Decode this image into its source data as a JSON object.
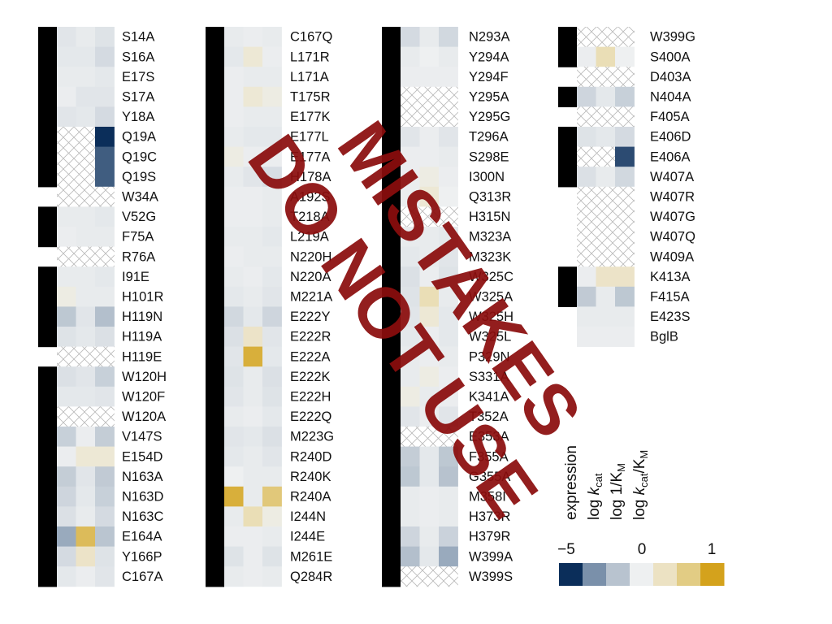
{
  "chart_data": {
    "type": "heatmap",
    "columns": [
      "expression",
      "log kcat",
      "log 1/KM",
      "log kcat/KM"
    ],
    "legend": {
      "min_label": "−5",
      "mid_label": "0",
      "max_label": "1",
      "colors": [
        "#0b2e5a",
        "#7a90aa",
        "#b8c3cf",
        "#eef0f1",
        "#ece2c3",
        "#e2cc84",
        "#d4a21c"
      ]
    },
    "watermark": [
      "MISTAKES",
      "DO NOT USE"
    ],
    "note": "expressed: 1 = black bar, 0 = none; values: log-scale z (null = not measured / hatched)",
    "mutants": [
      {
        "name": "S14A",
        "expressed": 1,
        "kcat": -0.4,
        "km": -0.2,
        "eff": -0.5
      },
      {
        "name": "S16A",
        "expressed": 1,
        "kcat": -0.3,
        "km": -0.3,
        "eff": -0.8
      },
      {
        "name": "E17S",
        "expressed": 1,
        "kcat": -0.2,
        "km": -0.2,
        "eff": -0.3
      },
      {
        "name": "S17A",
        "expressed": 1,
        "kcat": -0.1,
        "km": -0.4,
        "eff": -0.4
      },
      {
        "name": "Y18A",
        "expressed": 1,
        "kcat": -0.4,
        "km": -0.3,
        "eff": -0.8
      },
      {
        "name": "Q19A",
        "expressed": 1,
        "kcat": null,
        "km": null,
        "eff": -5.0
      },
      {
        "name": "Q19C",
        "expressed": 1,
        "kcat": null,
        "km": null,
        "eff": -4.2
      },
      {
        "name": "Q19S",
        "expressed": 1,
        "kcat": null,
        "km": null,
        "eff": -4.2
      },
      {
        "name": "W34A",
        "expressed": 0,
        "kcat": null,
        "km": null,
        "eff": null
      },
      {
        "name": "V52G",
        "expressed": 1,
        "kcat": -0.2,
        "km": -0.2,
        "eff": -0.3
      },
      {
        "name": "F75A",
        "expressed": 1,
        "kcat": -0.1,
        "km": -0.2,
        "eff": -0.2
      },
      {
        "name": "R76A",
        "expressed": 0,
        "kcat": null,
        "km": null,
        "eff": null
      },
      {
        "name": "I91E",
        "expressed": 1,
        "kcat": -0.2,
        "km": -0.2,
        "eff": -0.3
      },
      {
        "name": "H101R",
        "expressed": 1,
        "kcat": 0.1,
        "km": -0.2,
        "eff": -0.2
      },
      {
        "name": "H119N",
        "expressed": 1,
        "kcat": -1.5,
        "km": -0.4,
        "eff": -1.8
      },
      {
        "name": "H119A",
        "expressed": 1,
        "kcat": -0.5,
        "km": -0.3,
        "eff": -0.6
      },
      {
        "name": "H119E",
        "expressed": 0,
        "kcat": null,
        "km": null,
        "eff": null
      },
      {
        "name": "W120H",
        "expressed": 1,
        "kcat": -0.6,
        "km": -0.4,
        "eff": -1.2
      },
      {
        "name": "W120F",
        "expressed": 1,
        "kcat": -0.3,
        "km": -0.3,
        "eff": -0.4
      },
      {
        "name": "W120A",
        "expressed": 1,
        "kcat": null,
        "km": null,
        "eff": null
      },
      {
        "name": "V147S",
        "expressed": 1,
        "kcat": -1.2,
        "km": -0.1,
        "eff": -1.3
      },
      {
        "name": "E154D",
        "expressed": 1,
        "kcat": -0.1,
        "km": 0.2,
        "eff": 0.2
      },
      {
        "name": "N163A",
        "expressed": 1,
        "kcat": -1.3,
        "km": -0.4,
        "eff": -1.4
      },
      {
        "name": "N163D",
        "expressed": 1,
        "kcat": -1.0,
        "km": -0.3,
        "eff": -1.2
      },
      {
        "name": "N163C",
        "expressed": 1,
        "kcat": -0.6,
        "km": -0.2,
        "eff": -0.8
      },
      {
        "name": "E164A",
        "expressed": 1,
        "kcat": -2.5,
        "km": 0.8,
        "eff": -1.6
      },
      {
        "name": "Y166P",
        "expressed": 1,
        "kcat": -0.8,
        "km": 0.3,
        "eff": -0.5
      },
      {
        "name": "C167A",
        "expressed": 1,
        "kcat": -0.3,
        "km": -0.1,
        "eff": -0.4
      },
      {
        "name": "C167Q",
        "expressed": 1,
        "kcat": -0.2,
        "km": -0.1,
        "eff": -0.2
      },
      {
        "name": "L171R",
        "expressed": 1,
        "kcat": -0.3,
        "km": 0.2,
        "eff": -0.1
      },
      {
        "name": "L171A",
        "expressed": 1,
        "kcat": -0.1,
        "km": -0.2,
        "eff": -0.2
      },
      {
        "name": "T175R",
        "expressed": 1,
        "kcat": -0.1,
        "km": 0.2,
        "eff": 0.1
      },
      {
        "name": "E177K",
        "expressed": 1,
        "kcat": -0.1,
        "km": -0.2,
        "eff": -0.2
      },
      {
        "name": "E177L",
        "expressed": 1,
        "kcat": -0.2,
        "km": -0.3,
        "eff": -0.3
      },
      {
        "name": "E177A",
        "expressed": 1,
        "kcat": 0.1,
        "km": -0.1,
        "eff": -0.1
      },
      {
        "name": "H178A",
        "expressed": 1,
        "kcat": -0.2,
        "km": -0.4,
        "eff": -0.7
      },
      {
        "name": "A192S",
        "expressed": 1,
        "kcat": -0.1,
        "km": -0.1,
        "eff": -0.2
      },
      {
        "name": "T218A",
        "expressed": 1,
        "kcat": -0.1,
        "km": -0.1,
        "eff": -0.2
      },
      {
        "name": "L219A",
        "expressed": 1,
        "kcat": -0.2,
        "km": -0.2,
        "eff": -0.3
      },
      {
        "name": "N220H",
        "expressed": 1,
        "kcat": -0.1,
        "km": -0.2,
        "eff": -0.2
      },
      {
        "name": "N220A",
        "expressed": 1,
        "kcat": -0.2,
        "km": -0.1,
        "eff": -0.3
      },
      {
        "name": "M221A",
        "expressed": 1,
        "kcat": -0.3,
        "km": -0.2,
        "eff": -0.4
      },
      {
        "name": "E222Y",
        "expressed": 1,
        "kcat": -0.9,
        "km": -0.3,
        "eff": -1.0
      },
      {
        "name": "E222R",
        "expressed": 1,
        "kcat": -0.6,
        "km": 0.3,
        "eff": -0.4
      },
      {
        "name": "E222A",
        "expressed": 1,
        "kcat": -0.4,
        "km": 0.9,
        "eff": -0.3
      },
      {
        "name": "E222K",
        "expressed": 1,
        "kcat": -0.5,
        "km": -0.2,
        "eff": -0.6
      },
      {
        "name": "E222H",
        "expressed": 1,
        "kcat": -0.4,
        "km": -0.2,
        "eff": -0.5
      },
      {
        "name": "E222Q",
        "expressed": 1,
        "kcat": -0.2,
        "km": -0.1,
        "eff": -0.3
      },
      {
        "name": "M223G",
        "expressed": 1,
        "kcat": -0.4,
        "km": -0.3,
        "eff": -0.6
      },
      {
        "name": "R240D",
        "expressed": 1,
        "kcat": -0.3,
        "km": -0.2,
        "eff": -0.4
      },
      {
        "name": "R240K",
        "expressed": 1,
        "kcat": 0.0,
        "km": -0.2,
        "eff": -0.2
      },
      {
        "name": "R240A",
        "expressed": 1,
        "kcat": 0.9,
        "km": -0.2,
        "eff": 0.7
      },
      {
        "name": "I244N",
        "expressed": 1,
        "kcat": -0.2,
        "km": 0.4,
        "eff": 0.1
      },
      {
        "name": "I244E",
        "expressed": 1,
        "kcat": -0.1,
        "km": -0.1,
        "eff": -0.2
      },
      {
        "name": "M261E",
        "expressed": 1,
        "kcat": -0.5,
        "km": -0.1,
        "eff": -0.5
      },
      {
        "name": "Q284R",
        "expressed": 1,
        "kcat": -0.2,
        "km": -0.1,
        "eff": -0.2
      },
      {
        "name": "N293A",
        "expressed": 1,
        "kcat": -0.8,
        "km": -0.2,
        "eff": -0.9
      },
      {
        "name": "Y294A",
        "expressed": 1,
        "kcat": -0.2,
        "km": 0.0,
        "eff": -0.2
      },
      {
        "name": "Y294F",
        "expressed": 1,
        "kcat": -0.1,
        "km": -0.1,
        "eff": -0.1
      },
      {
        "name": "Y295A",
        "expressed": 1,
        "kcat": null,
        "km": null,
        "eff": null
      },
      {
        "name": "Y295G",
        "expressed": 1,
        "kcat": null,
        "km": null,
        "eff": null
      },
      {
        "name": "T296A",
        "expressed": 1,
        "kcat": -0.4,
        "km": -0.1,
        "eff": -0.4
      },
      {
        "name": "S298E",
        "expressed": 1,
        "kcat": -0.1,
        "km": -0.1,
        "eff": -0.2
      },
      {
        "name": "I300N",
        "expressed": 1,
        "kcat": -0.1,
        "km": 0.1,
        "eff": -0.1
      },
      {
        "name": "Q313R",
        "expressed": 1,
        "kcat": -0.1,
        "km": 0.2,
        "eff": 0.0
      },
      {
        "name": "H315N",
        "expressed": 1,
        "kcat": null,
        "km": null,
        "eff": null
      },
      {
        "name": "M323A",
        "expressed": 1,
        "kcat": -0.2,
        "km": -0.2,
        "eff": -0.3
      },
      {
        "name": "M323K",
        "expressed": 1,
        "kcat": -0.3,
        "km": -0.2,
        "eff": -0.4
      },
      {
        "name": "W325C",
        "expressed": 1,
        "kcat": -0.6,
        "km": -0.1,
        "eff": -0.5
      },
      {
        "name": "W325A",
        "expressed": 1,
        "kcat": -0.5,
        "km": 0.4,
        "eff": -0.2
      },
      {
        "name": "W325H",
        "expressed": 1,
        "kcat": -0.4,
        "km": 0.2,
        "eff": -0.3
      },
      {
        "name": "W325L",
        "expressed": 1,
        "kcat": -0.3,
        "km": -0.1,
        "eff": -0.3
      },
      {
        "name": "P329N",
        "expressed": 1,
        "kcat": -0.2,
        "km": -0.1,
        "eff": -0.2
      },
      {
        "name": "S331A",
        "expressed": 1,
        "kcat": -0.2,
        "km": 0.1,
        "eff": -0.1
      },
      {
        "name": "K341A",
        "expressed": 1,
        "kcat": 0.1,
        "km": -0.2,
        "eff": -0.1
      },
      {
        "name": "T352A",
        "expressed": 1,
        "kcat": -0.4,
        "km": -0.1,
        "eff": -0.4
      },
      {
        "name": "E353A",
        "expressed": 1,
        "kcat": null,
        "km": null,
        "eff": null
      },
      {
        "name": "F355A",
        "expressed": 1,
        "kcat": -1.3,
        "km": -0.3,
        "eff": -1.5
      },
      {
        "name": "G355A",
        "expressed": 1,
        "kcat": -1.5,
        "km": -0.3,
        "eff": -1.7
      },
      {
        "name": "M358I",
        "expressed": 1,
        "kcat": -0.2,
        "km": -0.1,
        "eff": -0.2
      },
      {
        "name": "H373R",
        "expressed": 1,
        "kcat": -0.2,
        "km": -0.1,
        "eff": -0.2
      },
      {
        "name": "H379R",
        "expressed": 1,
        "kcat": -1.0,
        "km": -0.2,
        "eff": -1.1
      },
      {
        "name": "W399A",
        "expressed": 1,
        "kcat": -1.8,
        "km": -0.3,
        "eff": -2.5
      },
      {
        "name": "W399S",
        "expressed": 1,
        "kcat": null,
        "km": null,
        "eff": null
      },
      {
        "name": "W399G",
        "expressed": 1,
        "kcat": null,
        "km": null,
        "eff": null
      },
      {
        "name": "S400A",
        "expressed": 1,
        "kcat": -0.1,
        "km": 0.4,
        "eff": 0.0
      },
      {
        "name": "D403A",
        "expressed": 0,
        "kcat": null,
        "km": null,
        "eff": null
      },
      {
        "name": "N404A",
        "expressed": 1,
        "kcat": -1.0,
        "km": -0.3,
        "eff": -1.2
      },
      {
        "name": "F405A",
        "expressed": 0,
        "kcat": null,
        "km": null,
        "eff": null
      },
      {
        "name": "E406D",
        "expressed": 1,
        "kcat": -0.5,
        "km": -0.3,
        "eff": -0.8
      },
      {
        "name": "E406A",
        "expressed": 1,
        "kcat": null,
        "km": null,
        "eff": -4.5
      },
      {
        "name": "W407A",
        "expressed": 1,
        "kcat": -0.6,
        "km": -0.2,
        "eff": -0.9
      },
      {
        "name": "W407R",
        "expressed": 0,
        "kcat": null,
        "km": null,
        "eff": null
      },
      {
        "name": "W407G",
        "expressed": 0,
        "kcat": null,
        "km": null,
        "eff": null
      },
      {
        "name": "W407Q",
        "expressed": 0,
        "kcat": null,
        "km": null,
        "eff": null
      },
      {
        "name": "W409A",
        "expressed": 0,
        "kcat": null,
        "km": null,
        "eff": null
      },
      {
        "name": "K413A",
        "expressed": 1,
        "kcat": -0.1,
        "km": 0.3,
        "eff": 0.3
      },
      {
        "name": "F415A",
        "expressed": 1,
        "kcat": -1.4,
        "km": -0.2,
        "eff": -1.5
      },
      {
        "name": "E423S",
        "expressed": 0,
        "kcat": -0.2,
        "km": -0.2,
        "eff": -0.2
      },
      {
        "name": "BglB",
        "expressed": 0,
        "kcat": -0.1,
        "km": -0.1,
        "eff": -0.1
      }
    ]
  }
}
